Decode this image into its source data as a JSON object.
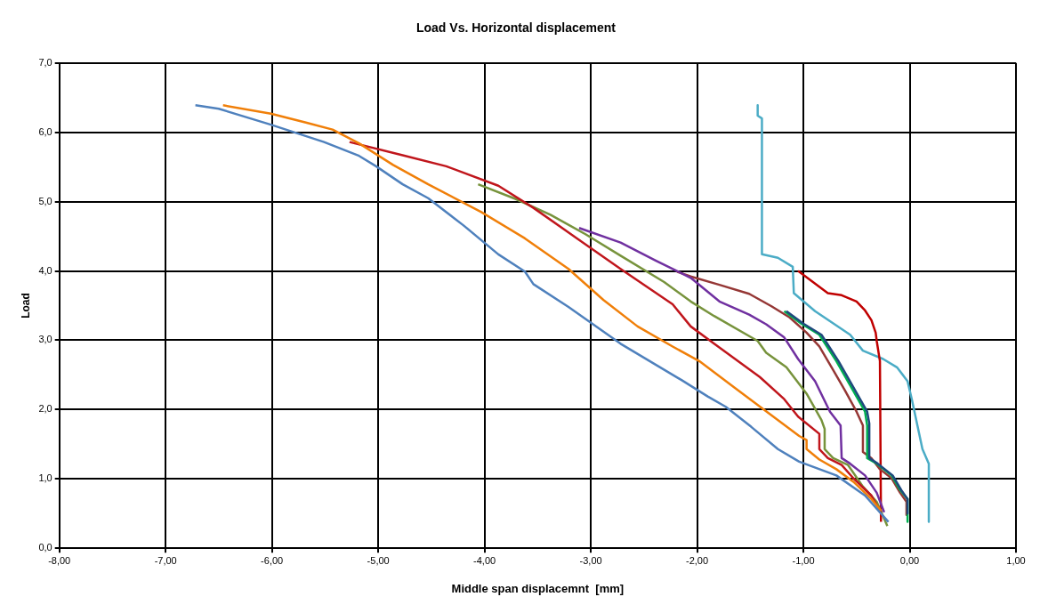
{
  "chart_data": {
    "type": "line",
    "title": "Load Vs. Horizontal displacement",
    "xlabel": "Middle span displacemnt  [mm]",
    "ylabel": "Load",
    "grid": true,
    "legend": false,
    "marker": "none",
    "line_style": "solid",
    "xlim": [
      -8,
      1
    ],
    "ylim": [
      0,
      7
    ],
    "xticks": [
      {
        "value": -8,
        "label": "-8,00"
      },
      {
        "value": -7,
        "label": "-7,00"
      },
      {
        "value": -6,
        "label": "-6,00"
      },
      {
        "value": -5,
        "label": "-5,00"
      },
      {
        "value": -4,
        "label": "-4,00"
      },
      {
        "value": -3,
        "label": "-3,00"
      },
      {
        "value": -2,
        "label": "-2,00"
      },
      {
        "value": -1,
        "label": "-1,00"
      },
      {
        "value": 0,
        "label": "0,00"
      },
      {
        "value": 1,
        "label": "1,00"
      }
    ],
    "yticks": [
      {
        "value": 0,
        "label": "0,0"
      },
      {
        "value": 1,
        "label": "1,0"
      },
      {
        "value": 2,
        "label": "2,0"
      },
      {
        "value": 3,
        "label": "3,0"
      },
      {
        "value": 4,
        "label": "4,0"
      },
      {
        "value": 5,
        "label": "5,0"
      },
      {
        "value": 6,
        "label": "6,0"
      },
      {
        "value": 7,
        "label": "7,0"
      }
    ],
    "series": [
      {
        "color": "#4f81bd",
        "x": [
          -6.72,
          -6.5,
          -6.01,
          -5.51,
          -5.18,
          -5.02,
          -4.77,
          -4.53,
          -4.2,
          -3.87,
          -3.62,
          -3.54,
          -3.21,
          -2.72,
          -2.14,
          -1.9,
          -1.73,
          -1.49,
          -1.24,
          -1.04,
          -0.69,
          -0.42,
          -0.2
        ],
        "values": [
          6.39,
          6.34,
          6.11,
          5.86,
          5.66,
          5.51,
          5.25,
          5.05,
          4.66,
          4.24,
          3.99,
          3.81,
          3.48,
          2.95,
          2.42,
          2.19,
          2.04,
          1.75,
          1.43,
          1.25,
          1.05,
          0.76,
          0.38
        ]
      },
      {
        "color": "#f07f09",
        "x": [
          -6.46,
          -6.01,
          -5.68,
          -5.43,
          -5.18,
          -4.86,
          -4.53,
          -4.03,
          -3.62,
          -3.21,
          -2.88,
          -2.56,
          -2.23,
          -1.98,
          -1.65,
          -1.32,
          -1.04,
          -0.97,
          -0.97,
          -0.85,
          -0.69,
          -0.53,
          -0.36,
          -0.27
        ],
        "values": [
          6.39,
          6.27,
          6.14,
          6.04,
          5.84,
          5.53,
          5.25,
          4.85,
          4.47,
          4.03,
          3.58,
          3.2,
          2.91,
          2.7,
          2.32,
          1.94,
          1.62,
          1.56,
          1.43,
          1.28,
          1.14,
          0.96,
          0.71,
          0.54
        ]
      },
      {
        "color": "#c0161c",
        "x": [
          -5.27,
          -4.77,
          -4.36,
          -3.87,
          -3.54,
          -3.13,
          -2.72,
          -2.23,
          -2.06,
          -1.84,
          -1.41,
          -1.18,
          -1.05,
          -0.85,
          -0.85,
          -0.77,
          -0.64,
          -0.53,
          -0.36,
          -0.27
        ],
        "values": [
          5.86,
          5.67,
          5.51,
          5.23,
          4.91,
          4.47,
          4.03,
          3.52,
          3.2,
          2.95,
          2.47,
          2.15,
          1.9,
          1.65,
          1.43,
          1.3,
          1.2,
          1.01,
          0.76,
          0.51
        ]
      },
      {
        "color": "#77933c",
        "x": [
          -4.06,
          -3.71,
          -3.38,
          -3.05,
          -2.72,
          -2.31,
          -2.06,
          -1.84,
          -1.43,
          -1.35,
          -1.16,
          -0.97,
          -0.83,
          -0.8,
          -0.8,
          -0.72,
          -0.58,
          -0.44,
          -0.31,
          -0.21
        ],
        "values": [
          5.25,
          5.04,
          4.81,
          4.53,
          4.22,
          3.84,
          3.56,
          3.35,
          2.99,
          2.82,
          2.61,
          2.23,
          1.85,
          1.72,
          1.43,
          1.3,
          1.2,
          0.89,
          0.67,
          0.32
        ]
      },
      {
        "color": "#7030a0",
        "x": [
          -3.11,
          -2.72,
          -2.39,
          -2.06,
          -1.79,
          -1.51,
          -1.35,
          -1.18,
          -1.05,
          -0.89,
          -0.75,
          -0.65,
          -0.64,
          -0.56,
          -0.42,
          -0.31,
          -0.24
        ],
        "values": [
          4.62,
          4.41,
          4.15,
          3.9,
          3.56,
          3.37,
          3.23,
          3.04,
          2.73,
          2.41,
          1.97,
          1.77,
          1.3,
          1.22,
          1.05,
          0.8,
          0.52
        ]
      },
      {
        "color": "#1f497d",
        "x": [
          -1.16,
          -1,
          -0.83,
          -0.67,
          -0.54,
          -0.4,
          -0.38,
          -0.38,
          -0.3,
          -0.16,
          -0.08,
          -0.02,
          -0.02
        ],
        "values": [
          3.42,
          3.24,
          3.08,
          2.7,
          2.35,
          1.97,
          1.8,
          1.3,
          1.22,
          1.05,
          0.84,
          0.71,
          0.5
        ]
      },
      {
        "color": "#00b050",
        "x": [
          -1.18,
          -1.02,
          -0.85,
          -0.69,
          -0.56,
          -0.42,
          -0.4,
          -0.4,
          -0.31,
          -0.17,
          -0.09,
          -0.02,
          -0.02
        ],
        "values": [
          3.42,
          3.24,
          3.08,
          2.7,
          2.35,
          1.97,
          1.77,
          1.3,
          1.22,
          1.05,
          0.84,
          0.71,
          0.38
        ]
      },
      {
        "color": "#953735",
        "x": [
          -2.19,
          -2.06,
          -1.79,
          -1.51,
          -1.3,
          -1.13,
          -0.97,
          -0.85,
          -0.72,
          -0.61,
          -0.5,
          -0.44,
          -0.44,
          -0.36,
          -0.28,
          -0.17,
          -0.09,
          -0.03,
          -0.03
        ],
        "values": [
          3.99,
          3.92,
          3.8,
          3.67,
          3.49,
          3.33,
          3.11,
          2.91,
          2.57,
          2.28,
          1.97,
          1.77,
          1.39,
          1.3,
          1.14,
          1.01,
          0.8,
          0.67,
          0.48
        ]
      },
      {
        "color": "#c00000",
        "x": [
          -1.05,
          -0.91,
          -0.77,
          -0.64,
          -0.5,
          -0.42,
          -0.36,
          -0.32,
          -0.31,
          -0.28,
          -0.27
        ],
        "values": [
          4.0,
          3.84,
          3.68,
          3.65,
          3.56,
          3.43,
          3.29,
          3.11,
          2.99,
          2.7,
          0.38
        ]
      },
      {
        "color": "#4bacc6",
        "x": [
          -1.43,
          -1.43,
          -1.39,
          -1.39,
          -1.24,
          -1.1,
          -1.09,
          -0.89,
          -0.56,
          -0.44,
          -0.25,
          -0.12,
          -0.02,
          0.02,
          0.12,
          0.18,
          0.18
        ],
        "values": [
          6.39,
          6.24,
          6.2,
          4.24,
          4.19,
          4.06,
          3.68,
          3.42,
          3.08,
          2.85,
          2.73,
          2.61,
          2.41,
          2.15,
          1.43,
          1.22,
          0.38
        ]
      }
    ]
  }
}
